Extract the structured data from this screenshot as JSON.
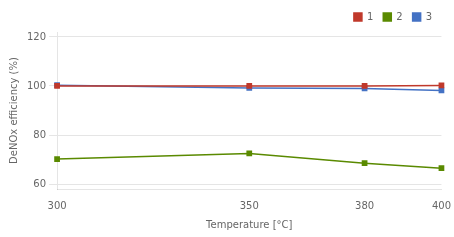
{
  "chart_data": {
    "type": "line",
    "x": [
      300,
      350,
      380,
      400
    ],
    "series": [
      {
        "name": "1",
        "color": "#c0392b",
        "values": [
          100.0,
          100.0,
          100.0,
          100.2
        ],
        "marker": "square"
      },
      {
        "name": "2",
        "color": "#5a8a00",
        "values": [
          70.2,
          72.5,
          68.5,
          66.5
        ],
        "marker": "square"
      },
      {
        "name": "3",
        "color": "#4472c4",
        "values": [
          100.3,
          99.2,
          99.0,
          98.2
        ],
        "marker": "square"
      }
    ],
    "xlabel": "Temperature [°C]",
    "ylabel": "DeNOx efficiency (%)",
    "xlim": [
      300,
      400
    ],
    "ylim": [
      58,
      122
    ],
    "xticks": [
      300,
      350,
      380,
      400
    ],
    "yticks": [
      60,
      80,
      100,
      120
    ],
    "grid": true,
    "legend": "upper right"
  }
}
